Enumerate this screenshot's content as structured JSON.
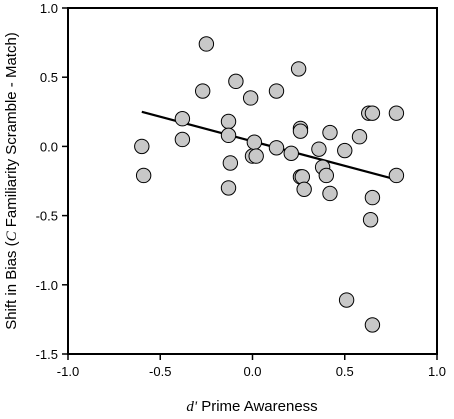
{
  "chart_data": {
    "type": "scatter",
    "title": "",
    "xlabel": {
      "italic_prefix": "d'",
      "text": " Prime Awareness"
    },
    "ylabel": {
      "before": "Shift in Bias (",
      "italic": "C",
      "after": " Familiarity Scramble - Match)"
    },
    "xlim": [
      -1.0,
      1.0
    ],
    "ylim": [
      -1.5,
      1.0
    ],
    "xticks": [
      -1.0,
      -0.5,
      0.0,
      0.5,
      1.0
    ],
    "yticks": [
      -1.5,
      -1.0,
      -0.5,
      0.0,
      0.5,
      1.0
    ],
    "xtick_labels": [
      "-1.0",
      "-0.5",
      "0.0",
      "0.5",
      "1.0"
    ],
    "ytick_labels": [
      "-1.5",
      "-1.0",
      "-0.5",
      "0.0",
      "0.5",
      "1.0"
    ],
    "grid": false,
    "marker_fill": "#c8c8c8",
    "marker_stroke": "#000000",
    "line_color": "#000000",
    "points": [
      [
        -0.6,
        0.0
      ],
      [
        -0.59,
        -0.21
      ],
      [
        -0.38,
        0.2
      ],
      [
        -0.38,
        0.05
      ],
      [
        -0.25,
        0.74
      ],
      [
        -0.27,
        0.4
      ],
      [
        -0.13,
        0.18
      ],
      [
        -0.13,
        0.08
      ],
      [
        -0.12,
        -0.12
      ],
      [
        -0.13,
        -0.3
      ],
      [
        -0.09,
        0.47
      ],
      [
        -0.01,
        0.35
      ],
      [
        0.0,
        -0.07
      ],
      [
        0.01,
        0.03
      ],
      [
        0.02,
        -0.07
      ],
      [
        0.13,
        0.4
      ],
      [
        0.13,
        -0.01
      ],
      [
        0.21,
        -0.05
      ],
      [
        0.25,
        0.56
      ],
      [
        0.26,
        0.13
      ],
      [
        0.26,
        0.11
      ],
      [
        0.26,
        -0.22
      ],
      [
        0.27,
        -0.22
      ],
      [
        0.28,
        -0.31
      ],
      [
        0.36,
        -0.02
      ],
      [
        0.38,
        -0.15
      ],
      [
        0.4,
        -0.21
      ],
      [
        0.42,
        0.1
      ],
      [
        0.42,
        -0.34
      ],
      [
        0.5,
        -0.03
      ],
      [
        0.51,
        -1.11
      ],
      [
        0.58,
        0.07
      ],
      [
        0.63,
        0.24
      ],
      [
        0.65,
        0.24
      ],
      [
        0.64,
        -0.53
      ],
      [
        0.65,
        -0.37
      ],
      [
        0.65,
        -1.29
      ],
      [
        0.78,
        0.24
      ],
      [
        0.78,
        -0.21
      ]
    ],
    "regression_line": {
      "x": [
        -0.6,
        0.78
      ],
      "y": [
        0.25,
        -0.24
      ]
    }
  }
}
